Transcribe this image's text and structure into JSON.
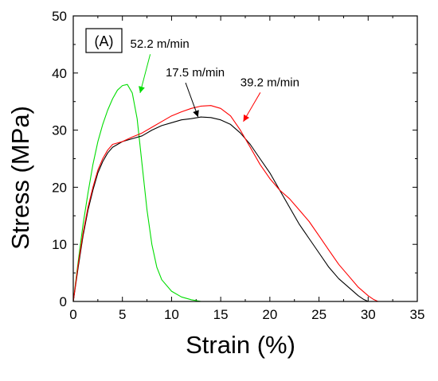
{
  "chart_data": {
    "type": "line",
    "panel_label": "(A)",
    "xlabel": "Strain (%)",
    "ylabel": "Stress (MPa)",
    "xlim": [
      0,
      35
    ],
    "ylim": [
      0,
      50
    ],
    "x_ticks": [
      0,
      5,
      10,
      15,
      20,
      25,
      30,
      35
    ],
    "y_ticks": [
      0,
      10,
      20,
      30,
      40,
      50
    ],
    "grid": false,
    "legend": "none",
    "series": [
      {
        "name": "52.2 m/min",
        "color": "#00dd00",
        "x": [
          0,
          0.5,
          1,
          1.5,
          2,
          2.5,
          3,
          3.5,
          4,
          4.5,
          5,
          5.5,
          6,
          6.5,
          7,
          7.5,
          8,
          8.5,
          9,
          10,
          11,
          12,
          13
        ],
        "y": [
          0,
          7,
          13.5,
          19,
          24,
          28,
          31,
          33.5,
          35.5,
          37,
          37.8,
          38,
          36.5,
          32,
          24,
          16,
          10,
          6,
          3.8,
          1.8,
          0.8,
          0.3,
          0
        ]
      },
      {
        "name": "17.5 m/min",
        "color": "#000000",
        "x": [
          0,
          0.5,
          1,
          1.5,
          2,
          2.5,
          3,
          3.5,
          4,
          5,
          6,
          7,
          8,
          9,
          10,
          11,
          12,
          13,
          14,
          15,
          16,
          17,
          18,
          19,
          20,
          21,
          22,
          23,
          24,
          25,
          26,
          27,
          28,
          29,
          29.5,
          30
        ],
        "y": [
          0,
          6,
          11.5,
          16,
          19.5,
          22.5,
          24.5,
          26,
          27,
          28,
          28.5,
          29,
          30,
          30.8,
          31.3,
          31.8,
          32,
          32.3,
          32.2,
          31.8,
          31,
          29.5,
          27.5,
          25,
          22.5,
          19.5,
          16.5,
          13.5,
          11,
          8.5,
          6,
          4,
          2.5,
          1,
          0.4,
          0
        ]
      },
      {
        "name": "39.2 m/min",
        "color": "#ff0000",
        "x": [
          0,
          0.5,
          1,
          1.5,
          2,
          2.5,
          3,
          3.5,
          4,
          5,
          6,
          7,
          8,
          9,
          10,
          11,
          12,
          13,
          14,
          15,
          16,
          17,
          18,
          19,
          20,
          21,
          22,
          23,
          24,
          25,
          26,
          27,
          28,
          29,
          30,
          30.5,
          31
        ],
        "y": [
          0,
          6.5,
          12,
          16.5,
          20,
          23,
          25,
          26.5,
          27.5,
          28,
          28.8,
          29.5,
          30.5,
          31.5,
          32.5,
          33.2,
          33.8,
          34.2,
          34.3,
          33.8,
          32.5,
          30,
          27,
          24,
          21.5,
          19.5,
          18,
          16,
          14,
          11.5,
          9,
          6.5,
          4.5,
          2.5,
          1,
          0.4,
          0
        ]
      }
    ],
    "annotations": [
      {
        "text": "52.2 m/min",
        "series": 0,
        "label_at": [
          8.8,
          44.4
        ],
        "arrow_to": [
          6.8,
          36.5
        ]
      },
      {
        "text": "17.5 m/min",
        "series": 1,
        "label_at": [
          12.4,
          39.4
        ],
        "arrow_to": [
          12.7,
          32.3
        ]
      },
      {
        "text": "39.2 m/min",
        "series": 2,
        "label_at": [
          20.0,
          37.7
        ],
        "arrow_to": [
          17.3,
          31.5
        ]
      }
    ]
  }
}
